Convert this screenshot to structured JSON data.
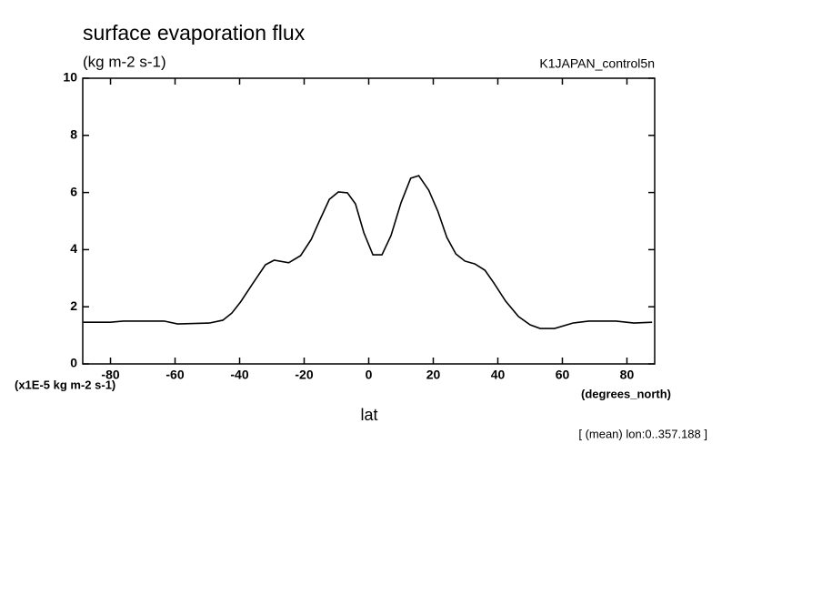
{
  "chart_data": {
    "type": "line",
    "title": "surface evaporation flux",
    "subtitle": "(kg m-2 s-1)",
    "experiment": "K1JAPAN_control5n",
    "y_scale_label": "(x1E-5 kg m-2 s-1)",
    "x_unit_label": "(degrees_north)",
    "xlabel": "lat",
    "note": "[ (mean) lon:0..357.188 ]",
    "xlim": [
      -88.6,
      88.6
    ],
    "ylim": [
      0,
      10
    ],
    "xticks": [
      -80,
      -60,
      -40,
      -20,
      0,
      20,
      40,
      60,
      80
    ],
    "yticks": [
      0,
      2,
      4,
      6,
      8,
      10
    ],
    "color": "#000000",
    "x": [
      -88.4,
      -80,
      -76,
      -63.4,
      -59.2,
      -49.4,
      -45.2,
      -42.4,
      -39.7,
      -36,
      -32,
      -29.3,
      -24.8,
      -21.1,
      -17.8,
      -15.3,
      -12.2,
      -9.4,
      -6.6,
      -4.1,
      -1.5,
      1.3,
      4.1,
      6.9,
      10,
      13,
      15.5,
      18.6,
      21.4,
      24.2,
      27,
      29.8,
      32.9,
      36,
      38.8,
      42.4,
      46.4,
      50,
      53.1,
      57.6,
      63.2,
      68.2,
      76.6,
      82.2,
      87.8
    ],
    "values": [
      1.46,
      1.46,
      1.5,
      1.5,
      1.4,
      1.43,
      1.53,
      1.78,
      2.17,
      2.8,
      3.47,
      3.63,
      3.54,
      3.79,
      4.36,
      5.0,
      5.76,
      6.02,
      5.99,
      5.6,
      4.59,
      3.82,
      3.82,
      4.49,
      5.64,
      6.5,
      6.59,
      6.08,
      5.35,
      4.43,
      3.85,
      3.6,
      3.5,
      3.28,
      2.83,
      2.2,
      1.66,
      1.37,
      1.24,
      1.24,
      1.43,
      1.5,
      1.5,
      1.43,
      1.46
    ]
  }
}
